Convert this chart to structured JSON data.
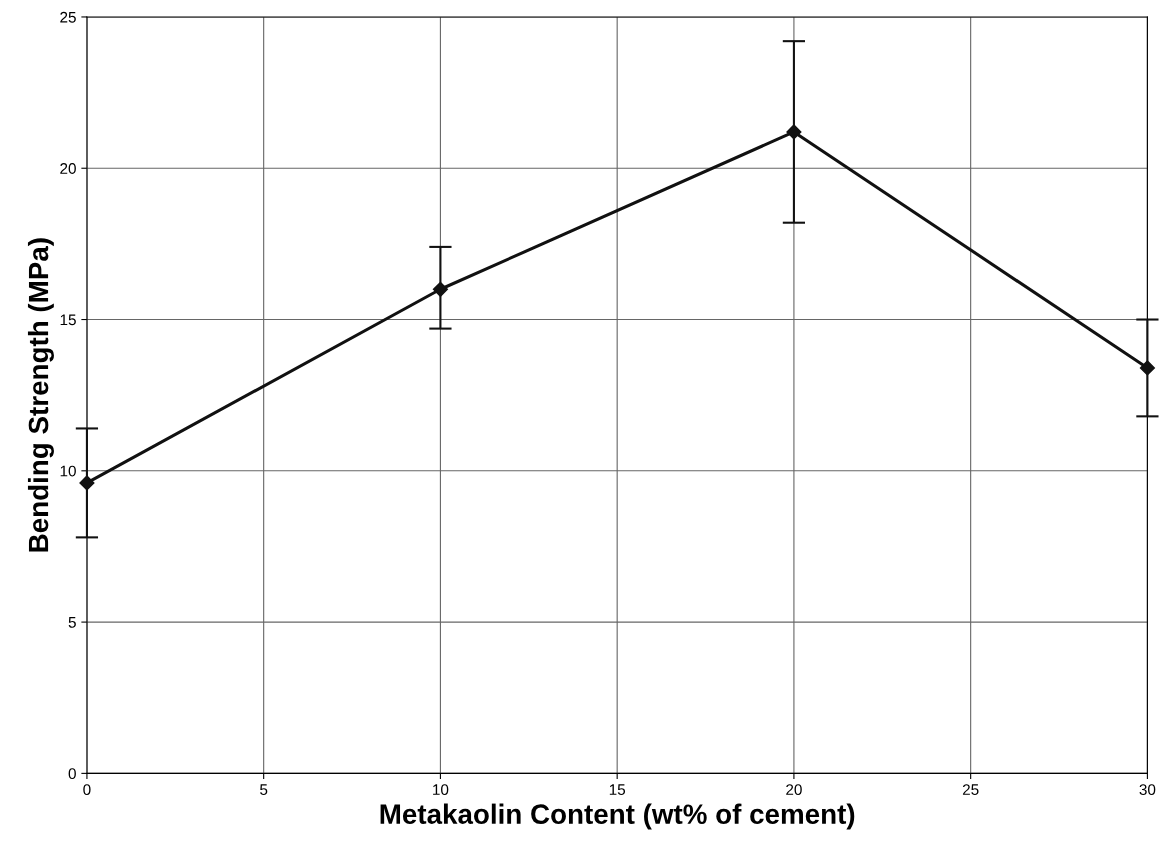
{
  "chart_data": {
    "type": "line",
    "xlabel": "Metakaolin Content (wt% of cement)",
    "ylabel": "Bending Strength (MPa)",
    "x": [
      0,
      10,
      20,
      30
    ],
    "series": [
      {
        "color": "#111111",
        "values": [
          9.6,
          16.0,
          21.2,
          13.4
        ],
        "errors": [
          [
            7.8,
            11.4
          ],
          [
            14.7,
            17.4
          ],
          [
            18.2,
            24.2
          ],
          [
            11.8,
            15.0
          ]
        ]
      }
    ],
    "xlim": [
      0,
      30
    ],
    "xticks": [
      0,
      5,
      10,
      15,
      20,
      25,
      30
    ],
    "ylim": [
      0,
      25
    ],
    "yticks": [
      0,
      5,
      10,
      15,
      20,
      25
    ],
    "grid": true,
    "marker": "diamond",
    "line_style": "solid"
  }
}
